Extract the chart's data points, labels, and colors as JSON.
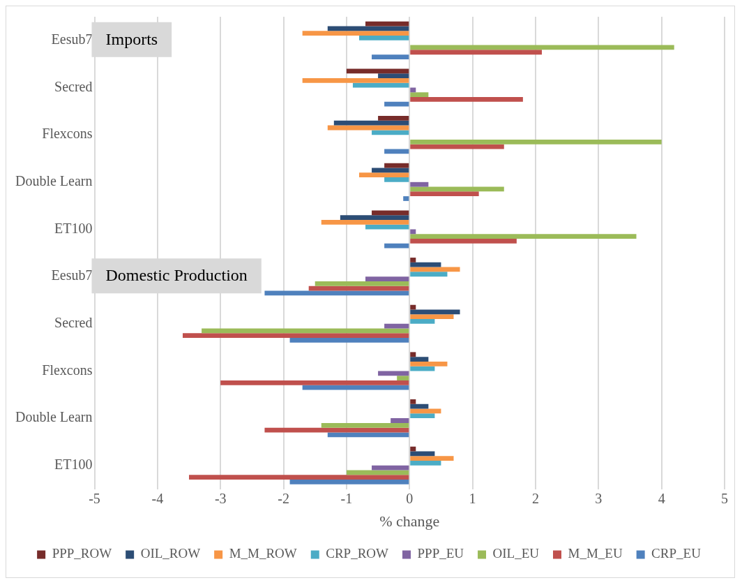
{
  "chart_data": {
    "type": "bar",
    "orientation": "horizontal",
    "xlabel": "% change",
    "categories": [
      "Eesub7",
      "Secred",
      "Flexcons",
      "Double Learn",
      "ET100",
      "Eesub7",
      "Secred",
      "Flexcons",
      "Double Learn",
      "ET100"
    ],
    "series": [
      {
        "name": "PPP_ROW",
        "color": "#772c2a",
        "values": [
          -0.7,
          -1.0,
          -0.5,
          -0.4,
          -0.6,
          0.1,
          0.1,
          0.1,
          0.1,
          0.1
        ]
      },
      {
        "name": "OIL_ROW",
        "color": "#2c4d75",
        "values": [
          -1.3,
          -0.5,
          -1.2,
          -0.6,
          -1.1,
          0.5,
          0.8,
          0.3,
          0.3,
          0.4
        ]
      },
      {
        "name": "M_M_ROW",
        "color": "#f79646",
        "values": [
          -1.7,
          -1.7,
          -1.3,
          -0.8,
          -1.4,
          0.8,
          0.7,
          0.6,
          0.5,
          0.7
        ]
      },
      {
        "name": "CRP_ROW",
        "color": "#4bacc6",
        "values": [
          -0.8,
          -0.9,
          -0.6,
          -0.4,
          -0.7,
          0.6,
          0.4,
          0.4,
          0.4,
          0.5
        ]
      },
      {
        "name": "PPP_EU",
        "color": "#8064a2",
        "values": [
          0,
          0.1,
          0,
          0.3,
          0.1,
          -0.7,
          -0.4,
          -0.5,
          -0.3,
          -0.6
        ]
      },
      {
        "name": "OIL_EU",
        "color": "#9bbb59",
        "values": [
          4.2,
          0.3,
          4.0,
          1.5,
          3.6,
          -1.5,
          -3.3,
          -0.2,
          -1.4,
          -1.0
        ]
      },
      {
        "name": "M_M_EU",
        "color": "#c0504d",
        "values": [
          2.1,
          1.8,
          1.5,
          1.1,
          1.7,
          -1.6,
          -3.6,
          -3.0,
          -2.3,
          -3.5
        ]
      },
      {
        "name": "CRP_EU",
        "color": "#4f81bd",
        "values": [
          -0.6,
          -0.4,
          -0.4,
          -0.1,
          -0.4,
          -2.3,
          -1.9,
          -1.7,
          -1.3,
          -1.9
        ]
      }
    ],
    "xlim": [
      -5,
      5
    ],
    "xticks": [
      -5,
      -4,
      -3,
      -2,
      -1,
      0,
      1,
      2,
      3,
      4,
      5
    ],
    "grid": "x",
    "legend": "bottom",
    "annotations": [
      "Imports",
      "Domestic Production"
    ]
  }
}
